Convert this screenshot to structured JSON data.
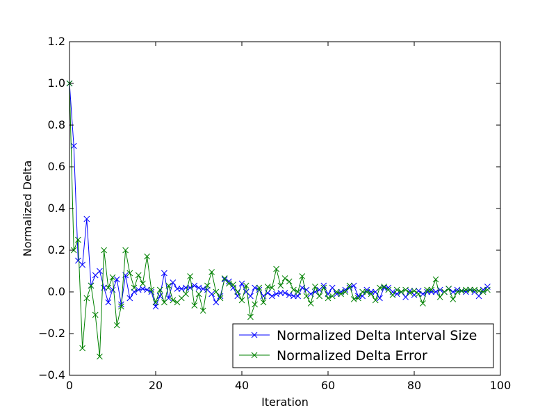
{
  "chart_data": {
    "type": "line",
    "title": "",
    "xlabel": "Iteration",
    "ylabel": "Normalized Delta",
    "xlim": [
      0,
      100
    ],
    "ylim": [
      -0.4,
      1.2
    ],
    "xticks": [
      "0",
      "20",
      "40",
      "60",
      "80",
      "100"
    ],
    "yticks": [
      "−0.4",
      "−0.2",
      "0.0",
      "0.2",
      "0.4",
      "0.6",
      "0.8",
      "1.0",
      "1.2"
    ],
    "grid": false,
    "legend_position": "bottom-right",
    "marker": "x",
    "series": [
      {
        "name": "Normalized Delta Interval Size",
        "color": "#0000ff",
        "values": [
          1.0,
          0.7,
          0.15,
          0.13,
          0.35,
          0.03,
          0.08,
          0.1,
          0.02,
          -0.05,
          0.01,
          0.06,
          -0.06,
          0.08,
          -0.03,
          0.0,
          0.01,
          0.015,
          0.01,
          0.0,
          -0.07,
          -0.02,
          0.09,
          -0.03,
          0.045,
          0.015,
          0.015,
          0.02,
          0.02,
          0.03,
          0.02,
          0.015,
          0.01,
          -0.01,
          -0.05,
          -0.02,
          0.06,
          0.05,
          0.02,
          -0.02,
          0.04,
          0.0,
          -0.02,
          0.02,
          0.01,
          -0.02,
          -0.005,
          -0.02,
          -0.01,
          -0.005,
          -0.005,
          -0.015,
          -0.02,
          -0.02,
          0.02,
          0.01,
          -0.01,
          0.0,
          0.01,
          0.03,
          -0.01,
          0.02,
          -0.01,
          0.0,
          0.01,
          0.02,
          0.03,
          -0.02,
          -0.02,
          0.01,
          0.0,
          0.0,
          -0.03,
          0.02,
          0.02,
          0.0,
          -0.01,
          0.0,
          -0.025,
          0.005,
          -0.015,
          0.005,
          -0.01,
          0.0,
          0.0,
          0.0,
          0.01,
          0.0,
          0.015,
          0.0,
          0.01,
          0.005,
          0.0,
          0.01,
          0.0,
          -0.02,
          0.01,
          0.025
        ]
      },
      {
        "name": "Normalized Delta Error",
        "color": "#008000",
        "values": [
          1.0,
          0.2,
          0.25,
          -0.27,
          -0.03,
          0.03,
          -0.11,
          -0.31,
          0.2,
          0.02,
          0.07,
          -0.16,
          -0.07,
          0.2,
          0.09,
          0.02,
          0.08,
          0.04,
          0.17,
          0.01,
          -0.05,
          0.01,
          -0.05,
          0.03,
          -0.04,
          -0.05,
          -0.03,
          -0.01,
          0.075,
          -0.065,
          -0.01,
          -0.09,
          0.03,
          0.095,
          0.0,
          -0.03,
          0.065,
          0.04,
          0.035,
          0.0,
          -0.04,
          0.03,
          -0.12,
          -0.06,
          0.02,
          -0.05,
          0.025,
          0.02,
          0.11,
          0.03,
          0.065,
          0.05,
          0.01,
          0.0,
          0.075,
          -0.02,
          -0.055,
          0.025,
          -0.02,
          0.02,
          -0.03,
          -0.02,
          0.0,
          -0.01,
          0.0,
          0.03,
          -0.035,
          -0.03,
          0.0,
          0.0,
          -0.01,
          -0.04,
          0.02,
          0.025,
          0.01,
          -0.015,
          0.01,
          0.0,
          0.01,
          -0.005,
          0.005,
          -0.01,
          -0.055,
          0.01,
          0.01,
          0.06,
          -0.025,
          0.0,
          0.015,
          -0.035,
          0.0,
          0.005,
          0.01,
          0.01,
          0.01,
          0.005,
          0.0,
          0.01
        ]
      }
    ]
  }
}
